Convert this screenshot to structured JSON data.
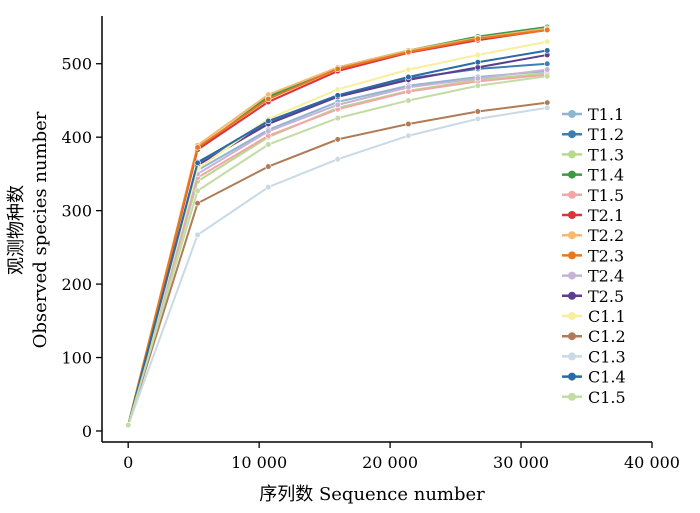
{
  "chart_data": {
    "type": "line",
    "title": "",
    "xlabel": "序列数  Sequence number",
    "ylabel_cn": "观测物种数",
    "ylabel_en": "Observed species number",
    "xlim": [
      -2000,
      40000
    ],
    "ylim": [
      -15,
      565
    ],
    "xticks": [
      0,
      10000,
      20000,
      30000,
      40000
    ],
    "xtick_labels": [
      "0",
      "10 000",
      "20 000",
      "30 000",
      "40 000"
    ],
    "yticks": [
      0,
      100,
      200,
      300,
      400,
      500
    ],
    "ytick_labels": [
      "0",
      "100",
      "200",
      "300",
      "400",
      "500"
    ],
    "grid": false,
    "legend_position": "right",
    "x": [
      0,
      5300,
      10700,
      16000,
      21400,
      26700,
      32000
    ],
    "series": [
      {
        "name": "T1.1",
        "color": "#8fb6d1",
        "values": [
          8,
          355,
          410,
          448,
          470,
          482,
          490
        ]
      },
      {
        "name": "T1.2",
        "color": "#3f7fb0",
        "values": [
          8,
          366,
          420,
          457,
          480,
          493,
          500
        ]
      },
      {
        "name": "T1.3",
        "color": "#b7d98b",
        "values": [
          8,
          340,
          400,
          440,
          463,
          478,
          487
        ]
      },
      {
        "name": "T1.4",
        "color": "#3d9a44",
        "values": [
          8,
          384,
          455,
          495,
          518,
          537,
          550
        ]
      },
      {
        "name": "T1.5",
        "color": "#f2a6a8",
        "values": [
          8,
          345,
          402,
          438,
          462,
          476,
          485
        ]
      },
      {
        "name": "T2.1",
        "color": "#d9333c",
        "values": [
          8,
          383,
          448,
          490,
          515,
          532,
          546
        ]
      },
      {
        "name": "T2.2",
        "color": "#f5b971",
        "values": [
          8,
          389,
          458,
          495,
          518,
          535,
          548
        ]
      },
      {
        "name": "T2.3",
        "color": "#e8781e",
        "values": [
          8,
          386,
          452,
          493,
          516,
          534,
          546
        ]
      },
      {
        "name": "T2.4",
        "color": "#c6b3d8",
        "values": [
          8,
          350,
          408,
          444,
          468,
          480,
          492
        ]
      },
      {
        "name": "T2.5",
        "color": "#5c3d8f",
        "values": [
          8,
          362,
          418,
          455,
          478,
          495,
          512
        ]
      },
      {
        "name": "C1.1",
        "color": "#f7ef9c",
        "values": [
          8,
          357,
          425,
          465,
          492,
          512,
          530
        ]
      },
      {
        "name": "C1.2",
        "color": "#b07c58",
        "values": [
          8,
          310,
          360,
          397,
          418,
          435,
          447
        ]
      },
      {
        "name": "C1.3",
        "color": "#c9d9e5",
        "values": [
          8,
          267,
          332,
          370,
          402,
          425,
          440
        ]
      },
      {
        "name": "C1.4",
        "color": "#2a6aa5",
        "values": [
          8,
          365,
          422,
          457,
          482,
          502,
          518
        ]
      },
      {
        "name": "C1.5",
        "color": "#c3dca5",
        "values": [
          8,
          327,
          390,
          426,
          450,
          470,
          483
        ]
      }
    ]
  }
}
